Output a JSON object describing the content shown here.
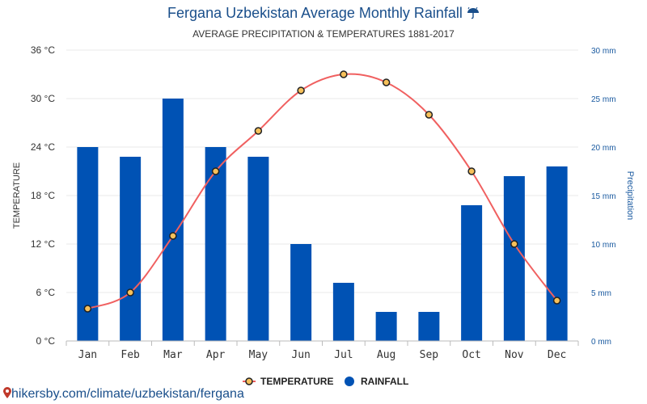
{
  "header": {
    "title": "Fergana Uzbekistan Average Monthly Rainfall",
    "subtitle": "AVERAGE PRECIPITATION & TEMPERATURES 1881-2017",
    "title_icon": "umbrella-rain-icon"
  },
  "footer": {
    "source_text": "hikersby.com/climate/uzbekistan/fergana",
    "icon": "map-pin-icon"
  },
  "colors": {
    "bar": "#0052b4",
    "temperature_line": "#f06060",
    "marker_fill": "#f6c05a",
    "marker_stroke": "#222222",
    "grid": "#e8e8e8",
    "left_axis_text": "#333333",
    "right_axis_text": "#1a5aa0"
  },
  "chart_data": {
    "type": "bar",
    "categories": [
      "Jan",
      "Feb",
      "Mar",
      "Apr",
      "May",
      "Jun",
      "Jul",
      "Aug",
      "Sep",
      "Oct",
      "Nov",
      "Dec"
    ],
    "series": [
      {
        "name": "TEMPERATURE",
        "type": "line",
        "axis": "left",
        "values": [
          4,
          6,
          13,
          21,
          26,
          31,
          33,
          32,
          28,
          21,
          12,
          5
        ]
      },
      {
        "name": "RAINFALL",
        "type": "bar",
        "axis": "right",
        "values": [
          20,
          19,
          25,
          20,
          19,
          10,
          6,
          3,
          3,
          14,
          17,
          18
        ]
      }
    ],
    "ylabel": "TEMPERATURE",
    "y2label": "Precipitation",
    "ylim": [
      0,
      36
    ],
    "y2lim": [
      0,
      30
    ],
    "yticks": [
      "0 °C",
      "6 °C",
      "12 °C",
      "18 °C",
      "24 °C",
      "30 °C",
      "36 °C"
    ],
    "y2ticks": [
      "0 mm",
      "5 mm",
      "10 mm",
      "15 mm",
      "20 mm",
      "25 mm",
      "30 mm"
    ],
    "grid": true,
    "legend": "bottom-center"
  }
}
